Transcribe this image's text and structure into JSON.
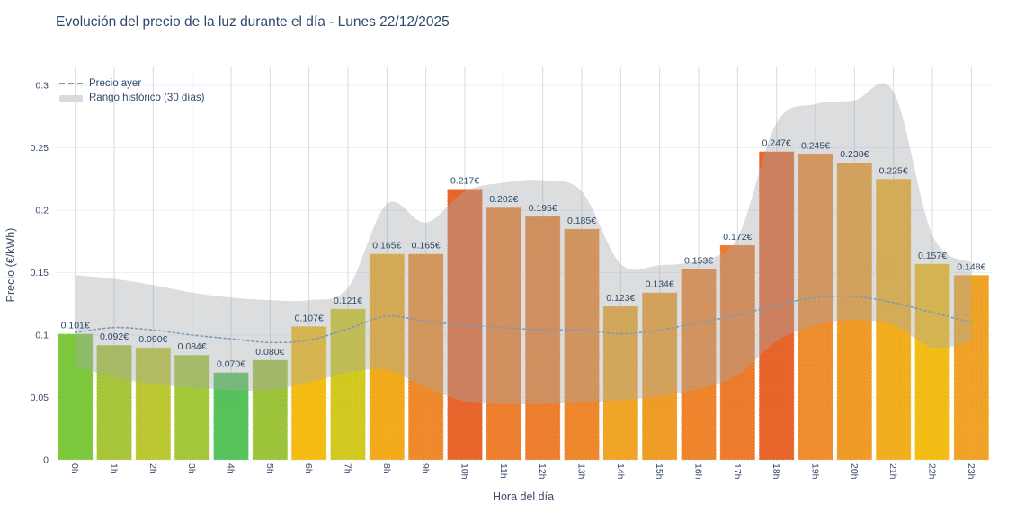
{
  "title": "Evolución del precio de la luz durante el día - Lunes 22/12/2025",
  "legend": {
    "items": [
      {
        "label": "Precio ayer",
        "type": "dashed-line"
      },
      {
        "label": "Rango histórico (30 días)",
        "type": "band"
      }
    ]
  },
  "axes": {
    "y_title": "Precio (€/kWh)",
    "x_title": "Hora del día",
    "y_tick_values": [
      0,
      0.05,
      0.1,
      0.15,
      0.2,
      0.25,
      0.3
    ],
    "y_tick_labels": [
      "0",
      "0.05",
      "0.1",
      "0.15",
      "0.2",
      "0.25",
      "0.3"
    ]
  },
  "chart_data": {
    "type": "bar",
    "title": "Evolución del precio de la luz durante el día - Lunes 22/12/2025",
    "xlabel": "Hora del día",
    "ylabel": "Precio (€/kWh)",
    "ylim": [
      0,
      0.3
    ],
    "grid": true,
    "legend_position": "top-left",
    "categories": [
      "0h",
      "1h",
      "2h",
      "3h",
      "4h",
      "5h",
      "6h",
      "7h",
      "8h",
      "9h",
      "10h",
      "11h",
      "12h",
      "13h",
      "14h",
      "15h",
      "16h",
      "17h",
      "18h",
      "19h",
      "20h",
      "21h",
      "22h",
      "23h"
    ],
    "series": [
      {
        "name": "",
        "type": "bar",
        "values": [
          0.101,
          0.092,
          0.09,
          0.084,
          0.07,
          0.08,
          0.107,
          0.121,
          0.165,
          0.165,
          0.217,
          0.202,
          0.195,
          0.185,
          0.123,
          0.134,
          0.153,
          0.172,
          0.247,
          0.245,
          0.238,
          0.225,
          0.157,
          0.148
        ],
        "labels": [
          "0.101€",
          "0.092€",
          "0.090€",
          "0.084€",
          "0.070€",
          "0.080€",
          "0.107€",
          "0.121€",
          "0.165€",
          "0.165€",
          "0.217€",
          "0.202€",
          "0.195€",
          "0.185€",
          "0.123€",
          "0.134€",
          "0.153€",
          "0.172€",
          "0.247€",
          "0.245€",
          "0.238€",
          "0.225€",
          "0.157€",
          "0.148€"
        ],
        "bar_colors": [
          "#7ec83d",
          "#a8c63a",
          "#bcc831",
          "#a4c83a",
          "#57c35c",
          "#9ec43c",
          "#f5bc13",
          "#d2c921",
          "#f3ab1c",
          "#ef8a2c",
          "#e8662b",
          "#ee7f2e",
          "#ee7f2e",
          "#ef872d",
          "#f0a526",
          "#f09d27",
          "#ee852d",
          "#ed7c2d",
          "#e8652b",
          "#ef8d30",
          "#f09b28",
          "#f2ae1f",
          "#f3bd16",
          "#f0a326"
        ]
      },
      {
        "name": "Precio ayer",
        "type": "line",
        "style": "dashed",
        "color": "#7e9ab5",
        "values": [
          0.102,
          0.106,
          0.104,
          0.1,
          0.097,
          0.094,
          0.096,
          0.105,
          0.115,
          0.111,
          0.108,
          0.106,
          0.104,
          0.104,
          0.101,
          0.104,
          0.11,
          0.116,
          0.124,
          0.13,
          0.131,
          0.126,
          0.118,
          0.11
        ]
      },
      {
        "name": "Rango histórico (30 días)",
        "type": "band",
        "color": "rgba(166,169,173,0.40)",
        "upper": [
          0.148,
          0.145,
          0.14,
          0.134,
          0.13,
          0.128,
          0.128,
          0.138,
          0.205,
          0.19,
          0.215,
          0.222,
          0.224,
          0.215,
          0.157,
          0.156,
          0.16,
          0.178,
          0.27,
          0.285,
          0.288,
          0.295,
          0.18,
          0.158
        ],
        "lower": [
          0.075,
          0.066,
          0.061,
          0.058,
          0.056,
          0.056,
          0.062,
          0.07,
          0.072,
          0.058,
          0.047,
          0.045,
          0.045,
          0.046,
          0.048,
          0.051,
          0.057,
          0.068,
          0.095,
          0.108,
          0.112,
          0.108,
          0.09,
          0.095
        ]
      }
    ]
  },
  "style": {
    "background": "#ffffff",
    "title_color": "#2e4a6b",
    "tick_color": "#3b4a66",
    "label_color": "#2e4a6b",
    "hgrid_color": "#e9f0f9",
    "vgrid_color": "#d8dade",
    "band_color": "rgba(166,169,173,0.40)",
    "dash_color": "#7e9ab5"
  }
}
